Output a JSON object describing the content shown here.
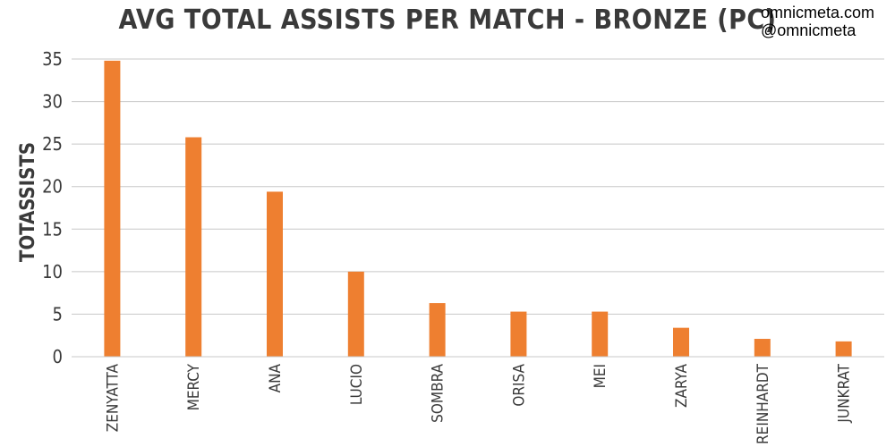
{
  "branding": {
    "site": "omnicmeta.com",
    "handle": "@omnicmeta"
  },
  "chart_data": {
    "type": "bar",
    "title": "AVG TOTAL ASSISTS PER MATCH - BRONZE (PC)",
    "xlabel": "",
    "ylabel": "TOTASSISTS",
    "ylim": [
      0,
      35
    ],
    "yticks": [
      0,
      5,
      10,
      15,
      20,
      25,
      30,
      35
    ],
    "grid": true,
    "categories": [
      "ZENYATTA",
      "MERCY",
      "ANA",
      "LUCIO",
      "SOMBRA",
      "ORISA",
      "MEI",
      "ZARYA",
      "REINHARDT",
      "JUNKRAT"
    ],
    "series": [
      {
        "color": "#ee7f30",
        "values": [
          34.8,
          25.8,
          19.4,
          10.0,
          6.3,
          5.3,
          5.3,
          3.4,
          2.1,
          1.8
        ]
      }
    ]
  }
}
